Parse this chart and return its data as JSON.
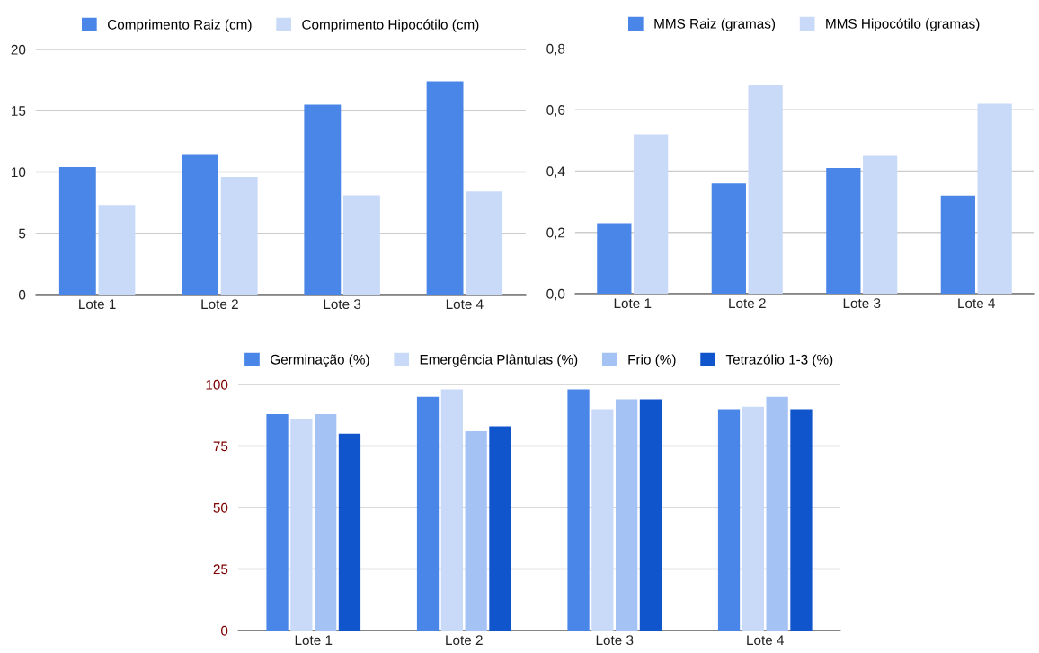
{
  "chart_data": [
    {
      "type": "bar",
      "categories": [
        "Lote 1",
        "Lote 2",
        "Lote 3",
        "Lote 4"
      ],
      "series": [
        {
          "name": "Comprimento Raiz (cm)",
          "color": "#4a86e8",
          "values": [
            10.4,
            11.4,
            15.5,
            17.4
          ]
        },
        {
          "name": "Comprimento Hipocótilo (cm)",
          "color": "#c9daf8",
          "values": [
            7.3,
            9.6,
            8.1,
            8.4
          ]
        }
      ],
      "ylim": [
        0,
        20
      ],
      "yticks": [
        0,
        5,
        10,
        15,
        20
      ],
      "grid": "y",
      "legend": "top"
    },
    {
      "type": "bar",
      "categories": [
        "Lote 1",
        "Lote 2",
        "Lote 3",
        "Lote 4"
      ],
      "series": [
        {
          "name": "MMS Raiz (gramas)",
          "color": "#4a86e8",
          "values": [
            0.23,
            0.36,
            0.41,
            0.32
          ]
        },
        {
          "name": "MMS Hipocótilo (gramas)",
          "color": "#c9daf8",
          "values": [
            0.52,
            0.68,
            0.45,
            0.62
          ]
        }
      ],
      "ylim": [
        0,
        0.8
      ],
      "yticks": [
        {
          "value": 0,
          "label": "0,0"
        },
        {
          "value": 0.2,
          "label": "0,2"
        },
        {
          "value": 0.4,
          "label": "0,4"
        },
        {
          "value": 0.6,
          "label": "0,6"
        },
        {
          "value": 0.8,
          "label": "0,8"
        }
      ],
      "grid": "y",
      "legend": "top"
    },
    {
      "type": "bar",
      "categories": [
        "Lote 1",
        "Lote 2",
        "Lote 3",
        "Lote 4"
      ],
      "series": [
        {
          "name": "Germinação (%)",
          "color": "#4a86e8",
          "values": [
            88,
            95,
            98,
            90
          ]
        },
        {
          "name": "Emergência Plântulas (%)",
          "color": "#c9daf8",
          "values": [
            86,
            98,
            90,
            91
          ]
        },
        {
          "name": "Frio (%)",
          "color": "#a4c2f4",
          "values": [
            88,
            81,
            94,
            95
          ]
        },
        {
          "name": "Tetrazólio 1-3 (%)",
          "color": "#1155cc",
          "values": [
            80,
            83,
            94,
            90
          ]
        }
      ],
      "ylim": [
        0,
        100
      ],
      "yticks": [
        0,
        25,
        50,
        75,
        100
      ],
      "grid": "y",
      "legend": "top"
    }
  ]
}
